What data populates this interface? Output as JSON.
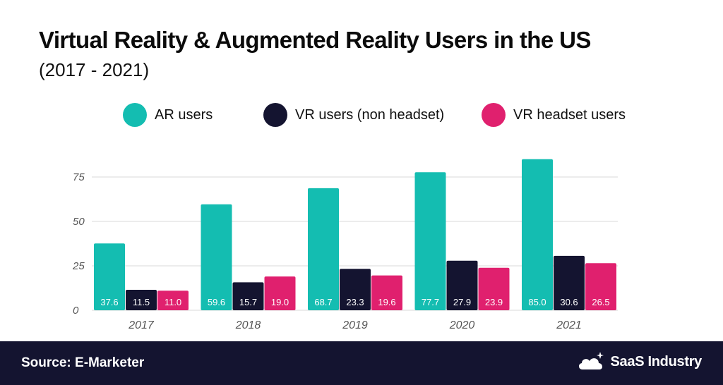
{
  "header": {
    "title": "Virtual Reality & Augmented Reality Users in the US",
    "subtitle": "(2017 - 2021)"
  },
  "legend": {
    "items": [
      {
        "label": "AR users",
        "color": "#14bdb1"
      },
      {
        "label": "VR users (non headset)",
        "color": "#141430"
      },
      {
        "label": "VR headset users",
        "color": "#e0206e"
      }
    ]
  },
  "chart_data": {
    "type": "bar",
    "categories": [
      "2017",
      "2018",
      "2019",
      "2020",
      "2021"
    ],
    "series": [
      {
        "name": "AR users",
        "color": "#14bdb1",
        "values": [
          37.6,
          59.6,
          68.7,
          77.7,
          85.0
        ]
      },
      {
        "name": "VR users (non headset)",
        "color": "#141430",
        "values": [
          11.5,
          15.7,
          23.3,
          27.9,
          30.6
        ]
      },
      {
        "name": "VR headset users",
        "color": "#e0206e",
        "values": [
          11.0,
          19.0,
          19.6,
          23.9,
          26.5
        ]
      }
    ],
    "yticks": [
      0,
      25,
      50,
      75
    ],
    "ylim": [
      0,
      90
    ],
    "grid": true,
    "legend_position": "top"
  },
  "footer": {
    "source": "Source: E-Marketer",
    "brand": "SaaS Industry",
    "brand_icon": "cloud-sparkle-icon"
  }
}
